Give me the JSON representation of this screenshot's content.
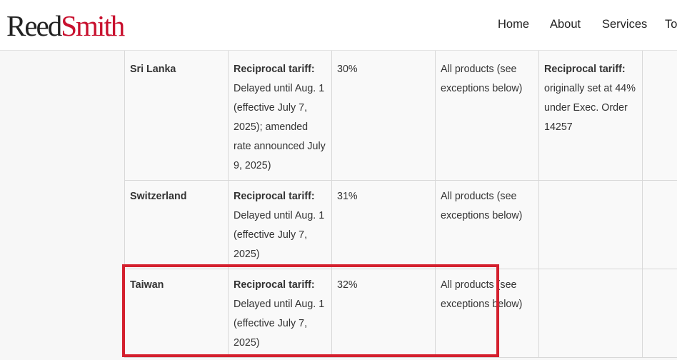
{
  "header": {
    "logo": {
      "first": "Reed",
      "second": "Smith"
    },
    "nav": [
      "Home",
      "About",
      "Services",
      "To"
    ]
  },
  "table": {
    "rows": [
      {
        "country": "Sri Lanka",
        "status": {
          "label": "Reciprocal tariff:",
          "text": "Delayed until Aug. 1 (effective July 7, 2025); amended rate announced July 9, 2025)"
        },
        "rate": "30%",
        "products": "All products (see exceptions below)",
        "notes": {
          "label": "Reciprocal tariff:",
          "text": "originally set at 44% under Exec. Order 14257"
        }
      },
      {
        "country": "Switzerland",
        "status": {
          "label": "Reciprocal tariff:",
          "text": "Delayed until Aug. 1 (effective July 7, 2025)"
        },
        "rate": "31%",
        "products": "All products (see exceptions below)"
      },
      {
        "country": "Taiwan",
        "status": {
          "label": "Reciprocal tariff:",
          "text": "Delayed until Aug. 1 (effective July 7, 2025)"
        },
        "rate": "32%",
        "products": "All products (see exceptions below)",
        "highlighted": true
      }
    ]
  }
}
